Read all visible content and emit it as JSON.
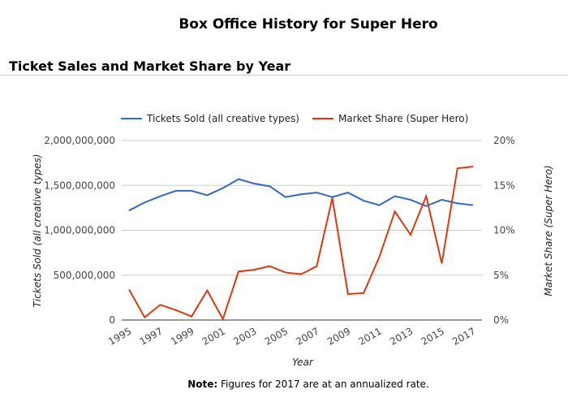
{
  "page_title": "Box Office History for Super Hero",
  "section_title": "Ticket Sales and Market Share by Year",
  "note": {
    "label": "Note:",
    "text": " Figures for 2017 are at an annualized rate."
  },
  "chart_data": {
    "type": "line",
    "xlabel": "Year",
    "ylabel_left": "Tickets Sold (all creative types)",
    "ylabel_right": "Market Share (Super Hero)",
    "x": [
      1995,
      1996,
      1997,
      1998,
      1999,
      2000,
      2001,
      2002,
      2003,
      2004,
      2005,
      2006,
      2007,
      2008,
      2009,
      2010,
      2011,
      2012,
      2013,
      2014,
      2015,
      2016,
      2017
    ],
    "x_tick_labels": [
      "1995",
      "1997",
      "1999",
      "2001",
      "2003",
      "2005",
      "2007",
      "2009",
      "2011",
      "2013",
      "2015",
      "2017"
    ],
    "y_left_ticks": [
      "0",
      "500,000,000",
      "1,000,000,000",
      "1,500,000,000",
      "2,000,000,000"
    ],
    "y_right_ticks": [
      "0%",
      "5%",
      "10%",
      "15%",
      "20%"
    ],
    "ylim_left": [
      0,
      2000000000
    ],
    "ylim_right": [
      0,
      20
    ],
    "legend_position": "top",
    "grid": true,
    "series": [
      {
        "name": "Tickets Sold (all creative types)",
        "axis": "left",
        "color": "#3366cc",
        "values": [
          1220000000,
          1310000000,
          1380000000,
          1440000000,
          1440000000,
          1390000000,
          1470000000,
          1570000000,
          1520000000,
          1490000000,
          1370000000,
          1400000000,
          1420000000,
          1370000000,
          1420000000,
          1330000000,
          1280000000,
          1380000000,
          1340000000,
          1270000000,
          1340000000,
          1300000000,
          1280000000
        ]
      },
      {
        "name": "Market Share (Super Hero)",
        "axis": "right",
        "color": "#dc3912",
        "values": [
          3.4,
          0.3,
          1.7,
          1.1,
          0.4,
          3.3,
          0.1,
          5.4,
          5.6,
          6.0,
          5.3,
          5.1,
          6.0,
          13.6,
          2.9,
          3.0,
          7.0,
          12.1,
          9.5,
          13.8,
          6.3,
          16.9,
          17.1
        ]
      }
    ]
  }
}
